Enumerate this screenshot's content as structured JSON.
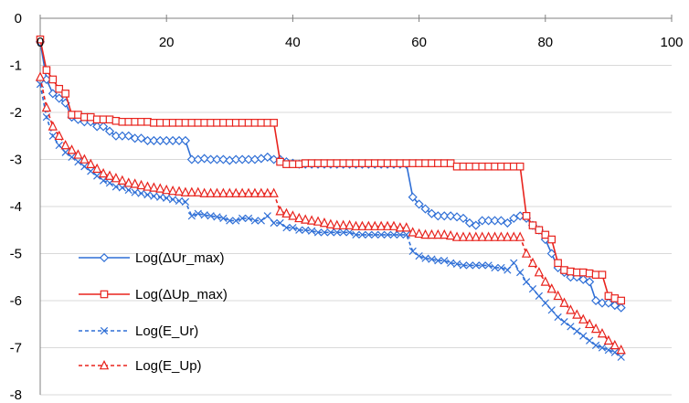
{
  "chart_data": {
    "type": "line",
    "title": "",
    "xlabel": "",
    "ylabel": "",
    "xlim": [
      0,
      100
    ],
    "ylim": [
      -8,
      0
    ],
    "xticks": [
      0,
      20,
      40,
      60,
      80,
      100
    ],
    "yticks": [
      0,
      -1,
      -2,
      -3,
      -4,
      -5,
      -6,
      -7,
      -8
    ],
    "xtick_labels": [
      "0",
      "20",
      "40",
      "60",
      "80",
      "100"
    ],
    "ytick_labels": [
      "0",
      "-1",
      "-2",
      "-3",
      "-4",
      "-5",
      "-6",
      "-7",
      "-8"
    ],
    "grid": "horizontal",
    "legend_position": "lower-left",
    "series": [
      {
        "name": "Log(ΔUr_max)",
        "color": "#2f6fd6",
        "dash": "solid",
        "marker": "diamond",
        "x": [
          0,
          1,
          2,
          3,
          4,
          5,
          6,
          7,
          8,
          9,
          10,
          11,
          12,
          13,
          14,
          15,
          16,
          17,
          18,
          19,
          20,
          21,
          22,
          23,
          24,
          25,
          26,
          27,
          28,
          29,
          30,
          31,
          32,
          33,
          34,
          35,
          36,
          37,
          38,
          39,
          40,
          41,
          42,
          43,
          44,
          45,
          46,
          47,
          48,
          49,
          50,
          51,
          52,
          53,
          54,
          55,
          56,
          57,
          58,
          59,
          60,
          61,
          62,
          63,
          64,
          65,
          66,
          67,
          68,
          69,
          70,
          71,
          72,
          73,
          74,
          75,
          76,
          77,
          78,
          79,
          80,
          81,
          82,
          83,
          84,
          85,
          86,
          87,
          88,
          89,
          90,
          91,
          92
        ],
        "y": [
          -0.5,
          -1.3,
          -1.6,
          -1.7,
          -1.8,
          -2.1,
          -2.15,
          -2.2,
          -2.2,
          -2.3,
          -2.3,
          -2.4,
          -2.5,
          -2.5,
          -2.5,
          -2.55,
          -2.55,
          -2.6,
          -2.6,
          -2.6,
          -2.6,
          -2.6,
          -2.6,
          -2.6,
          -3.0,
          -3.0,
          -2.98,
          -3.0,
          -3.0,
          -3.0,
          -3.02,
          -3.0,
          -3.0,
          -3.0,
          -3.0,
          -2.98,
          -2.95,
          -3.0,
          -3.0,
          -3.05,
          -3.08,
          -3.1,
          -3.1,
          -3.1,
          -3.1,
          -3.1,
          -3.1,
          -3.1,
          -3.1,
          -3.1,
          -3.1,
          -3.1,
          -3.1,
          -3.1,
          -3.1,
          -3.1,
          -3.1,
          -3.1,
          -3.1,
          -3.8,
          -3.95,
          -4.05,
          -4.15,
          -4.2,
          -4.2,
          -4.2,
          -4.22,
          -4.25,
          -4.35,
          -4.4,
          -4.3,
          -4.3,
          -4.3,
          -4.3,
          -4.35,
          -4.25,
          -4.2,
          -4.25,
          -4.4,
          -4.5,
          -4.7,
          -5.0,
          -5.3,
          -5.4,
          -5.5,
          -5.5,
          -5.55,
          -5.6,
          -6.0,
          -6.05,
          -6.05,
          -6.1,
          -6.15
        ]
      },
      {
        "name": "Log(ΔUp_max)",
        "color": "#e8231d",
        "dash": "solid",
        "marker": "square",
        "x": [
          0,
          1,
          2,
          3,
          4,
          5,
          6,
          7,
          8,
          9,
          10,
          11,
          12,
          13,
          14,
          15,
          16,
          17,
          18,
          19,
          20,
          21,
          22,
          23,
          24,
          25,
          26,
          27,
          28,
          29,
          30,
          31,
          32,
          33,
          34,
          35,
          36,
          37,
          38,
          39,
          40,
          41,
          42,
          43,
          44,
          45,
          46,
          47,
          48,
          49,
          50,
          51,
          52,
          53,
          54,
          55,
          56,
          57,
          58,
          59,
          60,
          61,
          62,
          63,
          64,
          65,
          66,
          67,
          68,
          69,
          70,
          71,
          72,
          73,
          74,
          75,
          76,
          77,
          78,
          79,
          80,
          81,
          82,
          83,
          84,
          85,
          86,
          87,
          88,
          89,
          90,
          91,
          92
        ],
        "y": [
          -0.45,
          -1.1,
          -1.3,
          -1.5,
          -1.6,
          -2.05,
          -2.05,
          -2.1,
          -2.1,
          -2.15,
          -2.15,
          -2.15,
          -2.18,
          -2.2,
          -2.2,
          -2.2,
          -2.2,
          -2.2,
          -2.22,
          -2.22,
          -2.22,
          -2.22,
          -2.22,
          -2.22,
          -2.22,
          -2.22,
          -2.22,
          -2.22,
          -2.22,
          -2.22,
          -2.22,
          -2.22,
          -2.22,
          -2.22,
          -2.22,
          -2.22,
          -2.22,
          -2.22,
          -3.05,
          -3.1,
          -3.1,
          -3.1,
          -3.08,
          -3.08,
          -3.08,
          -3.08,
          -3.08,
          -3.08,
          -3.08,
          -3.08,
          -3.08,
          -3.08,
          -3.08,
          -3.08,
          -3.08,
          -3.08,
          -3.08,
          -3.08,
          -3.08,
          -3.08,
          -3.08,
          -3.08,
          -3.08,
          -3.08,
          -3.08,
          -3.08,
          -3.15,
          -3.15,
          -3.15,
          -3.15,
          -3.15,
          -3.15,
          -3.15,
          -3.15,
          -3.15,
          -3.15,
          -3.15,
          -4.2,
          -4.4,
          -4.5,
          -4.6,
          -4.7,
          -5.2,
          -5.35,
          -5.38,
          -5.4,
          -5.4,
          -5.42,
          -5.45,
          -5.45,
          -5.9,
          -5.95,
          -6.0
        ]
      },
      {
        "name": "Log(E_Ur)",
        "color": "#2f6fd6",
        "dash": "dashed",
        "marker": "x",
        "x": [
          0,
          1,
          2,
          3,
          4,
          5,
          6,
          7,
          8,
          9,
          10,
          11,
          12,
          13,
          14,
          15,
          16,
          17,
          18,
          19,
          20,
          21,
          22,
          23,
          24,
          25,
          26,
          27,
          28,
          29,
          30,
          31,
          32,
          33,
          34,
          35,
          36,
          37,
          38,
          39,
          40,
          41,
          42,
          43,
          44,
          45,
          46,
          47,
          48,
          49,
          50,
          51,
          52,
          53,
          54,
          55,
          56,
          57,
          58,
          59,
          60,
          61,
          62,
          63,
          64,
          65,
          66,
          67,
          68,
          69,
          70,
          71,
          72,
          73,
          74,
          75,
          76,
          77,
          78,
          79,
          80,
          81,
          82,
          83,
          84,
          85,
          86,
          87,
          88,
          89,
          90,
          91,
          92
        ],
        "y": [
          -1.4,
          -2.1,
          -2.5,
          -2.7,
          -2.85,
          -2.95,
          -3.05,
          -3.15,
          -3.25,
          -3.35,
          -3.45,
          -3.5,
          -3.58,
          -3.6,
          -3.65,
          -3.7,
          -3.72,
          -3.75,
          -3.78,
          -3.8,
          -3.82,
          -3.85,
          -3.88,
          -3.9,
          -4.2,
          -4.15,
          -4.18,
          -4.2,
          -4.22,
          -4.25,
          -4.3,
          -4.3,
          -4.25,
          -4.25,
          -4.3,
          -4.3,
          -4.2,
          -4.35,
          -4.35,
          -4.45,
          -4.45,
          -4.5,
          -4.5,
          -4.52,
          -4.55,
          -4.55,
          -4.55,
          -4.55,
          -4.55,
          -4.55,
          -4.6,
          -4.6,
          -4.6,
          -4.6,
          -4.6,
          -4.6,
          -4.6,
          -4.6,
          -4.6,
          -4.95,
          -5.05,
          -5.1,
          -5.12,
          -5.15,
          -5.15,
          -5.2,
          -5.22,
          -5.25,
          -5.25,
          -5.25,
          -5.25,
          -5.25,
          -5.3,
          -5.3,
          -5.35,
          -5.2,
          -5.4,
          -5.6,
          -5.75,
          -5.9,
          -6.05,
          -6.2,
          -6.35,
          -6.45,
          -6.55,
          -6.65,
          -6.75,
          -6.85,
          -6.95,
          -7.0,
          -7.05,
          -7.1,
          -7.2
        ]
      },
      {
        "name": "Log(E_Up)",
        "color": "#e8231d",
        "dash": "dashed",
        "marker": "triangle",
        "x": [
          0,
          1,
          2,
          3,
          4,
          5,
          6,
          7,
          8,
          9,
          10,
          11,
          12,
          13,
          14,
          15,
          16,
          17,
          18,
          19,
          20,
          21,
          22,
          23,
          24,
          25,
          26,
          27,
          28,
          29,
          30,
          31,
          32,
          33,
          34,
          35,
          36,
          37,
          38,
          39,
          40,
          41,
          42,
          43,
          44,
          45,
          46,
          47,
          48,
          49,
          50,
          51,
          52,
          53,
          54,
          55,
          56,
          57,
          58,
          59,
          60,
          61,
          62,
          63,
          64,
          65,
          66,
          67,
          68,
          69,
          70,
          71,
          72,
          73,
          74,
          75,
          76,
          77,
          78,
          79,
          80,
          81,
          82,
          83,
          84,
          85,
          86,
          87,
          88,
          89,
          90,
          91,
          92
        ],
        "y": [
          -1.25,
          -1.9,
          -2.3,
          -2.5,
          -2.7,
          -2.8,
          -2.9,
          -3.0,
          -3.1,
          -3.2,
          -3.3,
          -3.35,
          -3.4,
          -3.45,
          -3.5,
          -3.52,
          -3.55,
          -3.58,
          -3.6,
          -3.62,
          -3.65,
          -3.67,
          -3.68,
          -3.7,
          -3.7,
          -3.7,
          -3.72,
          -3.72,
          -3.72,
          -3.72,
          -3.72,
          -3.72,
          -3.72,
          -3.72,
          -3.72,
          -3.72,
          -3.72,
          -3.72,
          -4.1,
          -4.15,
          -4.2,
          -4.25,
          -4.28,
          -4.3,
          -4.32,
          -4.35,
          -4.38,
          -4.4,
          -4.4,
          -4.4,
          -4.42,
          -4.42,
          -4.42,
          -4.42,
          -4.42,
          -4.42,
          -4.42,
          -4.45,
          -4.45,
          -4.55,
          -4.58,
          -4.6,
          -4.6,
          -4.6,
          -4.6,
          -4.62,
          -4.65,
          -4.65,
          -4.65,
          -4.65,
          -4.65,
          -4.65,
          -4.65,
          -4.65,
          -4.65,
          -4.65,
          -4.65,
          -5.0,
          -5.2,
          -5.4,
          -5.6,
          -5.75,
          -5.9,
          -6.05,
          -6.2,
          -6.3,
          -6.4,
          -6.5,
          -6.6,
          -6.7,
          -6.85,
          -6.95,
          -7.05
        ]
      }
    ]
  }
}
